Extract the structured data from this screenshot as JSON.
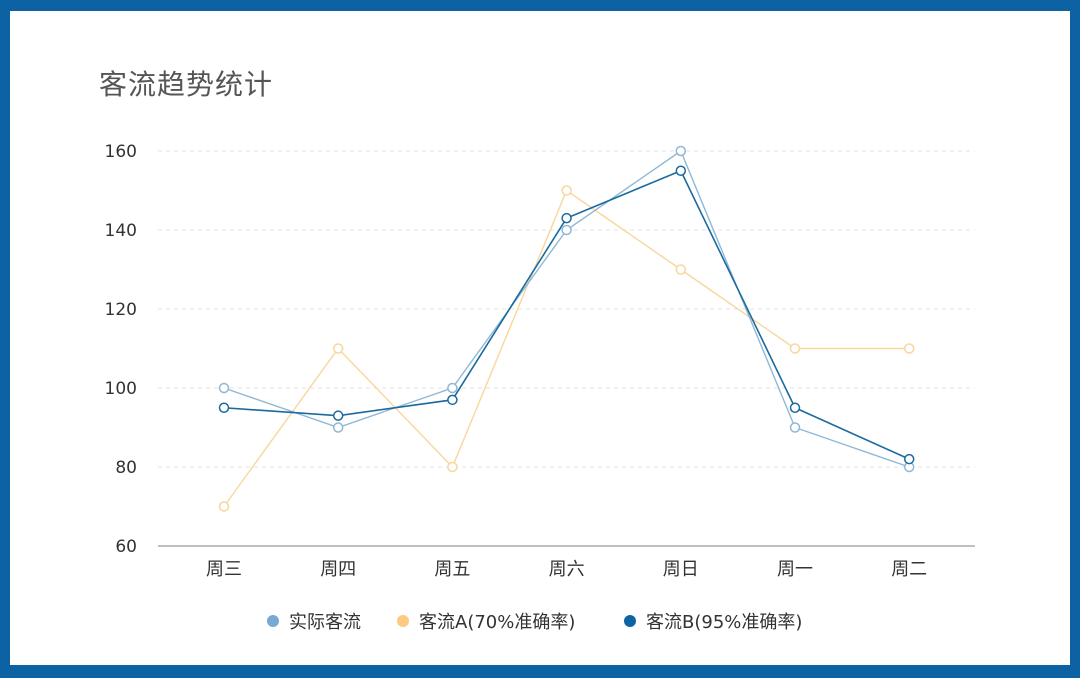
{
  "frame": {
    "border_color": "#0d62a3",
    "background": "#ffffff"
  },
  "title": "客流趋势统计",
  "legend": [
    {
      "label": "实际客流",
      "color": "#76a9d3"
    },
    {
      "label": "客流A(70%准确率)",
      "color": "#fcca80"
    },
    {
      "label": "客流B(95%准确率)",
      "color": "#0d64a3"
    }
  ],
  "chart_data": {
    "type": "line",
    "title": "客流趋势统计",
    "xlabel": "",
    "ylabel": "",
    "categories": [
      "周三",
      "周四",
      "周五",
      "周六",
      "周日",
      "周一",
      "周二"
    ],
    "series": [
      {
        "name": "实际客流",
        "values": [
          100,
          90,
          100,
          140,
          160,
          90,
          80
        ],
        "line_color": "#8fb8d6",
        "legend_color": "#76a9d3"
      },
      {
        "name": "客流A(70%准确率)",
        "values": [
          70,
          110,
          80,
          150,
          130,
          110,
          110
        ],
        "line_color": "#f8d79c",
        "legend_color": "#fcca80"
      },
      {
        "name": "客流B(95%准确率)",
        "values": [
          95,
          93,
          97,
          143,
          155,
          95,
          82
        ],
        "line_color": "#1b6a9e",
        "legend_color": "#0d64a3"
      }
    ],
    "yticks": [
      60,
      80,
      100,
      120,
      140,
      160
    ],
    "ylim": [
      60,
      160
    ],
    "grid": true,
    "grid_style": "dashed",
    "legend_position": "bottom",
    "markers": "hollow-circle"
  }
}
